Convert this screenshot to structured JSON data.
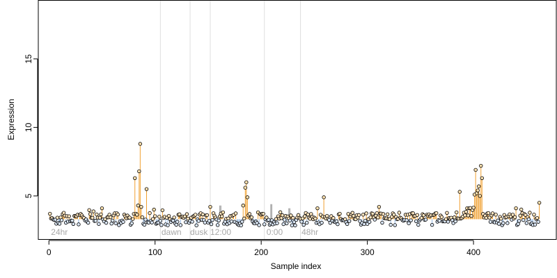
{
  "chart_data": {
    "type": "scatter",
    "xlabel": "Sample index",
    "ylabel": "Expression",
    "xlim": [
      -10,
      478
    ],
    "ylim": [
      1.8,
      19.3
    ],
    "x_ticks": [
      0,
      100,
      200,
      300,
      400
    ],
    "y_ticks": [
      5,
      10,
      15
    ],
    "baseline": 3.3,
    "colors": {
      "above": "#f0a030",
      "below": "#8fb4e0",
      "grey": "#a0a0a0",
      "divider": "#dedede",
      "point_edge": "#000000"
    },
    "region_labels": [
      {
        "label": "24hr",
        "x": 2
      },
      {
        "label": "dawn",
        "x": 106
      },
      {
        "label": "dusk",
        "x": 133
      },
      {
        "label": "12:00",
        "x": 152
      },
      {
        "label": "0:00",
        "x": 205
      },
      {
        "label": "48hr",
        "x": 238
      }
    ],
    "dividers": [
      105,
      133,
      152,
      203,
      237
    ],
    "grey_spikes": [
      {
        "x": 161,
        "y": 4.3
      },
      {
        "x": 162,
        "y": 4.3
      },
      {
        "x": 209,
        "y": 4.4
      },
      {
        "x": 210,
        "y": 4.4
      },
      {
        "x": 226,
        "y": 4.1
      },
      {
        "x": 227,
        "y": 4.1
      }
    ],
    "highlight_points": [
      {
        "x": 50,
        "y": 4.1
      },
      {
        "x": 81,
        "y": 6.3
      },
      {
        "x": 82,
        "y": 3.7
      },
      {
        "x": 84,
        "y": 4.3
      },
      {
        "x": 85,
        "y": 6.8
      },
      {
        "x": 86,
        "y": 8.8
      },
      {
        "x": 87,
        "y": 4.2
      },
      {
        "x": 92,
        "y": 5.5
      },
      {
        "x": 99,
        "y": 4.0
      },
      {
        "x": 152,
        "y": 4.2
      },
      {
        "x": 164,
        "y": 3.8
      },
      {
        "x": 183,
        "y": 4.3
      },
      {
        "x": 185,
        "y": 5.6
      },
      {
        "x": 186,
        "y": 6.0
      },
      {
        "x": 187,
        "y": 4.9
      },
      {
        "x": 197,
        "y": 3.8
      },
      {
        "x": 253,
        "y": 4.1
      },
      {
        "x": 259,
        "y": 4.9
      },
      {
        "x": 311,
        "y": 4.2
      },
      {
        "x": 387,
        "y": 5.3
      },
      {
        "x": 394,
        "y": 4.1
      },
      {
        "x": 401,
        "y": 5.1
      },
      {
        "x": 402,
        "y": 6.9
      },
      {
        "x": 403,
        "y": 5.2
      },
      {
        "x": 404,
        "y": 5.4
      },
      {
        "x": 405,
        "y": 5.7
      },
      {
        "x": 406,
        "y": 5.0
      },
      {
        "x": 407,
        "y": 7.2
      },
      {
        "x": 408,
        "y": 6.3
      },
      {
        "x": 440,
        "y": 4.1
      },
      {
        "x": 462,
        "y": 4.5
      }
    ]
  }
}
